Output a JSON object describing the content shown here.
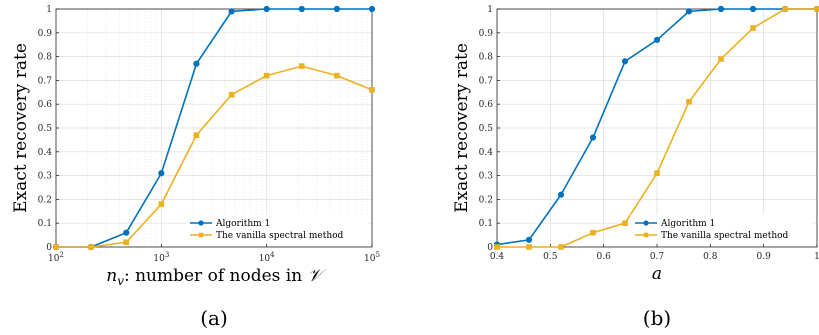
{
  "colors": {
    "algorithm": "#0072BD",
    "vanilla": "#EDB120",
    "grid": "#dddddd",
    "axis": "#262626"
  },
  "chart_data": [
    {
      "type": "line",
      "caption": "(a)",
      "xscale": "log",
      "xlim": [
        100,
        100000
      ],
      "ylim": [
        0,
        1
      ],
      "grid": true,
      "legend_position": "bottom-right",
      "ylabel": "Exact recovery rate",
      "xlabel_symbol": "n",
      "xlabel_sub": "v",
      "xlabel_rest": ": number of nodes in ",
      "xlabel_script": "𝒱",
      "xticks": [
        {
          "value": 100,
          "base": "10",
          "exp": "2"
        },
        {
          "value": 1000,
          "base": "10",
          "exp": "3"
        },
        {
          "value": 10000,
          "base": "10",
          "exp": "4"
        },
        {
          "value": 100000,
          "base": "10",
          "exp": "5"
        }
      ],
      "yticks": [
        {
          "value": 0,
          "label": "0"
        },
        {
          "value": 0.1,
          "label": "0.1"
        },
        {
          "value": 0.2,
          "label": "0.2"
        },
        {
          "value": 0.3,
          "label": "0.3"
        },
        {
          "value": 0.4,
          "label": "0.4"
        },
        {
          "value": 0.5,
          "label": "0.5"
        },
        {
          "value": 0.6,
          "label": "0.6"
        },
        {
          "value": 0.7,
          "label": "0.7"
        },
        {
          "value": 0.8,
          "label": "0.8"
        },
        {
          "value": 0.9,
          "label": "0.9"
        },
        {
          "value": 1,
          "label": "1"
        }
      ],
      "series": [
        {
          "name": "Algorithm 1",
          "marker": "circle",
          "x": [
            100,
            215,
            464,
            1000,
            2154,
            4642,
            10000,
            21544,
            46416,
            100000
          ],
          "y": [
            0,
            0,
            0.06,
            0.31,
            0.77,
            0.99,
            1,
            1,
            1,
            1
          ]
        },
        {
          "name": "The vanilla spectral method",
          "marker": "square",
          "x": [
            100,
            215,
            464,
            1000,
            2154,
            4642,
            10000,
            21544,
            46416,
            100000
          ],
          "y": [
            0,
            0,
            0.02,
            0.18,
            0.47,
            0.64,
            0.72,
            0.76,
            0.72,
            0.66
          ]
        }
      ]
    },
    {
      "type": "line",
      "caption": "(b)",
      "xscale": "linear",
      "xlim": [
        0.4,
        1
      ],
      "ylim": [
        0,
        1
      ],
      "grid": true,
      "legend_position": "bottom-right",
      "ylabel": "Exact recovery rate",
      "xlabel": "a",
      "xticks": [
        {
          "value": 0.4,
          "label": "0.4"
        },
        {
          "value": 0.5,
          "label": "0.5"
        },
        {
          "value": 0.6,
          "label": "0.6"
        },
        {
          "value": 0.7,
          "label": "0.7"
        },
        {
          "value": 0.8,
          "label": "0.8"
        },
        {
          "value": 0.9,
          "label": "0.9"
        },
        {
          "value": 1,
          "label": "1"
        }
      ],
      "yticks": [
        {
          "value": 0,
          "label": "0"
        },
        {
          "value": 0.1,
          "label": "0.1"
        },
        {
          "value": 0.2,
          "label": "0.2"
        },
        {
          "value": 0.3,
          "label": "0.3"
        },
        {
          "value": 0.4,
          "label": "0.4"
        },
        {
          "value": 0.5,
          "label": "0.5"
        },
        {
          "value": 0.6,
          "label": "0.6"
        },
        {
          "value": 0.7,
          "label": "0.7"
        },
        {
          "value": 0.8,
          "label": "0.8"
        },
        {
          "value": 0.9,
          "label": "0.9"
        },
        {
          "value": 1,
          "label": "1"
        }
      ],
      "series": [
        {
          "name": "Algorithm 1",
          "marker": "circle",
          "x": [
            0.4,
            0.46,
            0.52,
            0.58,
            0.64,
            0.7,
            0.76,
            0.82,
            0.88,
            0.94,
            1
          ],
          "y": [
            0.01,
            0.03,
            0.22,
            0.46,
            0.78,
            0.87,
            0.99,
            1,
            1,
            1,
            1
          ]
        },
        {
          "name": "The vanilla spectral method",
          "marker": "square",
          "x": [
            0.4,
            0.46,
            0.52,
            0.58,
            0.64,
            0.7,
            0.76,
            0.82,
            0.88,
            0.94,
            1
          ],
          "y": [
            0,
            0,
            0,
            0.06,
            0.1,
            0.31,
            0.61,
            0.79,
            0.92,
            1,
            1
          ]
        }
      ]
    }
  ]
}
